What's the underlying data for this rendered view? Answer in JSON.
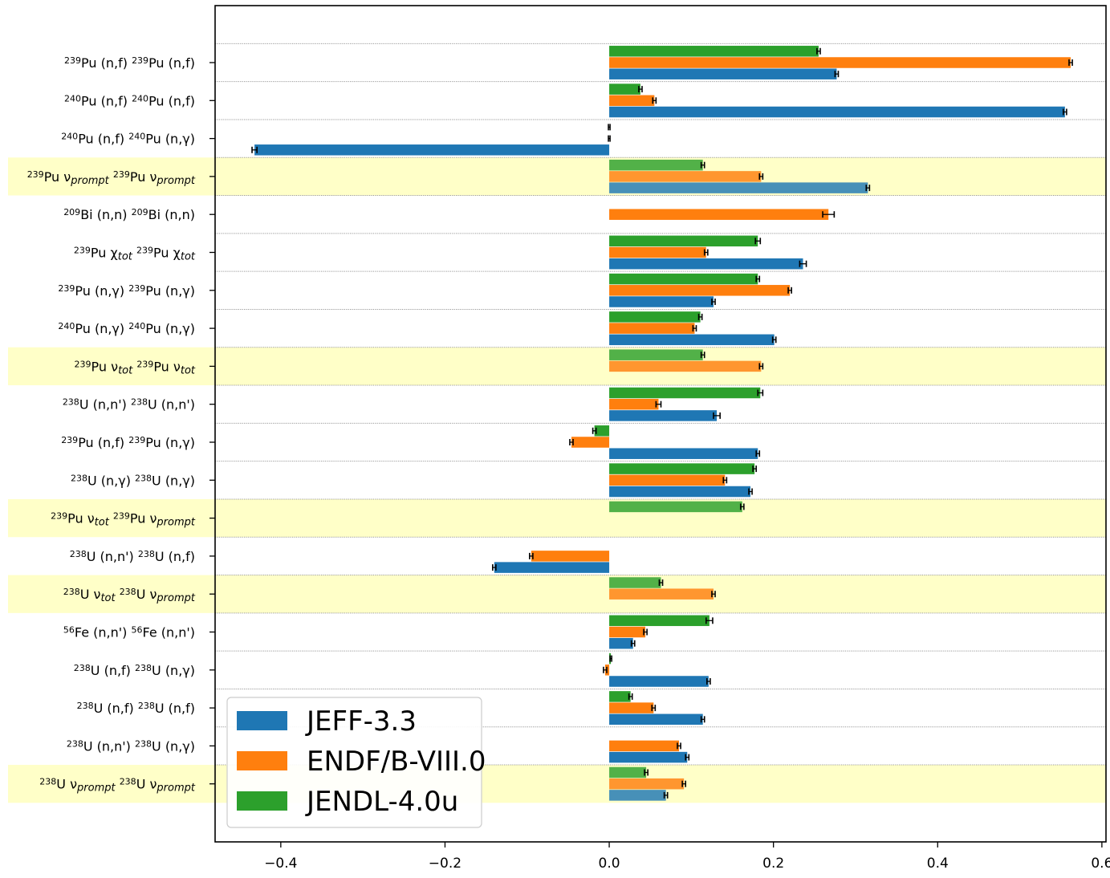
{
  "chart_data": {
    "type": "bar",
    "orientation": "horizontal",
    "xlim": [
      -0.48,
      0.605
    ],
    "xticks": [
      -0.4,
      -0.2,
      0.0,
      0.2,
      0.4,
      0.6
    ],
    "xtick_labels": [
      "−0.4",
      "−0.2",
      "0.0",
      "0.2",
      "0.4",
      "0.6"
    ],
    "grid": "horizontal dotted",
    "legend_position": "bottom-left",
    "colors": {
      "JEFF-3.3": "#1f77b4",
      "ENDF/B-VIII.0": "#ff7f0e",
      "JENDL-4.0u": "#2ca02c",
      "highlight": "#ffffc8",
      "error_bar": "#000000"
    },
    "categories": [
      {
        "parts": [
          [
            "sup",
            "239"
          ],
          [
            "n",
            "Pu (n,f) "
          ],
          [
            "sup",
            "239"
          ],
          [
            "n",
            "Pu (n,f)"
          ]
        ],
        "highlight": false
      },
      {
        "parts": [
          [
            "sup",
            "240"
          ],
          [
            "n",
            "Pu (n,f) "
          ],
          [
            "sup",
            "240"
          ],
          [
            "n",
            "Pu (n,f)"
          ]
        ],
        "highlight": false
      },
      {
        "parts": [
          [
            "sup",
            "240"
          ],
          [
            "n",
            "Pu (n,f) "
          ],
          [
            "sup",
            "240"
          ],
          [
            "n",
            "Pu (n,γ)"
          ]
        ],
        "highlight": false
      },
      {
        "parts": [
          [
            "sup",
            "239"
          ],
          [
            "n",
            "Pu ν"
          ],
          [
            "sub",
            "prompt"
          ],
          [
            "n",
            " "
          ],
          [
            "sup",
            "239"
          ],
          [
            "n",
            "Pu ν"
          ],
          [
            "sub",
            "prompt"
          ]
        ],
        "highlight": true
      },
      {
        "parts": [
          [
            "sup",
            "209"
          ],
          [
            "n",
            "Bi (n,n) "
          ],
          [
            "sup",
            "209"
          ],
          [
            "n",
            "Bi (n,n)"
          ]
        ],
        "highlight": false
      },
      {
        "parts": [
          [
            "sup",
            "239"
          ],
          [
            "n",
            "Pu χ"
          ],
          [
            "sub",
            "tot"
          ],
          [
            "n",
            " "
          ],
          [
            "sup",
            "239"
          ],
          [
            "n",
            "Pu χ"
          ],
          [
            "sub",
            "tot"
          ]
        ],
        "highlight": false
      },
      {
        "parts": [
          [
            "sup",
            "239"
          ],
          [
            "n",
            "Pu (n,γ) "
          ],
          [
            "sup",
            "239"
          ],
          [
            "n",
            "Pu (n,γ)"
          ]
        ],
        "highlight": false
      },
      {
        "parts": [
          [
            "sup",
            "240"
          ],
          [
            "n",
            "Pu (n,γ) "
          ],
          [
            "sup",
            "240"
          ],
          [
            "n",
            "Pu (n,γ)"
          ]
        ],
        "highlight": false
      },
      {
        "parts": [
          [
            "sup",
            "239"
          ],
          [
            "n",
            "Pu ν"
          ],
          [
            "sub",
            "tot"
          ],
          [
            "n",
            " "
          ],
          [
            "sup",
            "239"
          ],
          [
            "n",
            "Pu ν"
          ],
          [
            "sub",
            "tot"
          ]
        ],
        "highlight": true
      },
      {
        "parts": [
          [
            "sup",
            "238"
          ],
          [
            "n",
            "U (n,n') "
          ],
          [
            "sup",
            "238"
          ],
          [
            "n",
            "U (n,n')"
          ]
        ],
        "highlight": false
      },
      {
        "parts": [
          [
            "sup",
            "239"
          ],
          [
            "n",
            "Pu (n,f) "
          ],
          [
            "sup",
            "239"
          ],
          [
            "n",
            "Pu (n,γ)"
          ]
        ],
        "highlight": false
      },
      {
        "parts": [
          [
            "sup",
            "238"
          ],
          [
            "n",
            "U (n,γ) "
          ],
          [
            "sup",
            "238"
          ],
          [
            "n",
            "U (n,γ)"
          ]
        ],
        "highlight": false
      },
      {
        "parts": [
          [
            "sup",
            "239"
          ],
          [
            "n",
            "Pu ν"
          ],
          [
            "sub",
            "tot"
          ],
          [
            "n",
            " "
          ],
          [
            "sup",
            "239"
          ],
          [
            "n",
            "Pu ν"
          ],
          [
            "sub",
            "prompt"
          ]
        ],
        "highlight": true
      },
      {
        "parts": [
          [
            "sup",
            "238"
          ],
          [
            "n",
            "U (n,n') "
          ],
          [
            "sup",
            "238"
          ],
          [
            "n",
            "U (n,f)"
          ]
        ],
        "highlight": false
      },
      {
        "parts": [
          [
            "sup",
            "238"
          ],
          [
            "n",
            "U ν"
          ],
          [
            "sub",
            "tot"
          ],
          [
            "n",
            " "
          ],
          [
            "sup",
            "238"
          ],
          [
            "n",
            "U ν"
          ],
          [
            "sub",
            "prompt"
          ]
        ],
        "highlight": true
      },
      {
        "parts": [
          [
            "sup",
            "56"
          ],
          [
            "n",
            "Fe (n,n') "
          ],
          [
            "sup",
            "56"
          ],
          [
            "n",
            "Fe (n,n')"
          ]
        ],
        "highlight": false
      },
      {
        "parts": [
          [
            "sup",
            "238"
          ],
          [
            "n",
            "U (n,f) "
          ],
          [
            "sup",
            "238"
          ],
          [
            "n",
            "U (n,γ)"
          ]
        ],
        "highlight": false
      },
      {
        "parts": [
          [
            "sup",
            "238"
          ],
          [
            "n",
            "U (n,f) "
          ],
          [
            "sup",
            "238"
          ],
          [
            "n",
            "U (n,f)"
          ]
        ],
        "highlight": false
      },
      {
        "parts": [
          [
            "sup",
            "238"
          ],
          [
            "n",
            "U (n,n') "
          ],
          [
            "sup",
            "238"
          ],
          [
            "n",
            "U (n,γ)"
          ]
        ],
        "highlight": false
      },
      {
        "parts": [
          [
            "sup",
            "238"
          ],
          [
            "n",
            "U ν"
          ],
          [
            "sub",
            "prompt"
          ],
          [
            "n",
            " "
          ],
          [
            "sup",
            "238"
          ],
          [
            "n",
            "U ν"
          ],
          [
            "sub",
            "prompt"
          ]
        ],
        "highlight": true
      }
    ],
    "series": [
      {
        "name": "JEFF-3.3",
        "values": [
          0.277,
          0.555,
          -0.432,
          0.315,
          null,
          0.236,
          0.127,
          0.201,
          null,
          0.131,
          0.181,
          0.172,
          null,
          -0.14,
          null,
          0.029,
          0.121,
          0.114,
          0.095,
          0.069
        ],
        "errors": [
          0.002,
          0.002,
          0.003,
          0.002,
          null,
          0.004,
          0.002,
          0.002,
          null,
          0.004,
          0.002,
          0.002,
          null,
          0.002,
          null,
          0.002,
          0.002,
          0.002,
          0.002,
          0.002
        ]
      },
      {
        "name": "ENDF/B-VIII.0",
        "values": [
          0.562,
          0.055,
          0.0,
          0.185,
          0.267,
          0.118,
          0.22,
          0.104,
          0.185,
          0.06,
          -0.046,
          0.141,
          null,
          -0.095,
          0.127,
          0.044,
          -0.005,
          0.054,
          0.085,
          0.091
        ],
        "errors": [
          0.002,
          0.002,
          0.001,
          0.002,
          0.007,
          0.002,
          0.002,
          0.002,
          0.002,
          0.003,
          0.002,
          0.002,
          null,
          0.002,
          0.002,
          0.002,
          0.002,
          0.002,
          0.002,
          0.002
        ]
      },
      {
        "name": "JENDL-4.0u",
        "values": [
          0.255,
          0.038,
          0.0,
          0.114,
          null,
          0.181,
          0.181,
          0.111,
          0.114,
          0.184,
          -0.018,
          0.177,
          0.162,
          null,
          0.063,
          0.122,
          0.002,
          0.026,
          null,
          0.045
        ],
        "errors": [
          0.002,
          0.002,
          0.001,
          0.002,
          null,
          0.003,
          0.002,
          0.002,
          0.002,
          0.003,
          0.002,
          0.002,
          0.002,
          null,
          0.002,
          0.004,
          0.001,
          0.002,
          null,
          0.002
        ]
      }
    ]
  }
}
